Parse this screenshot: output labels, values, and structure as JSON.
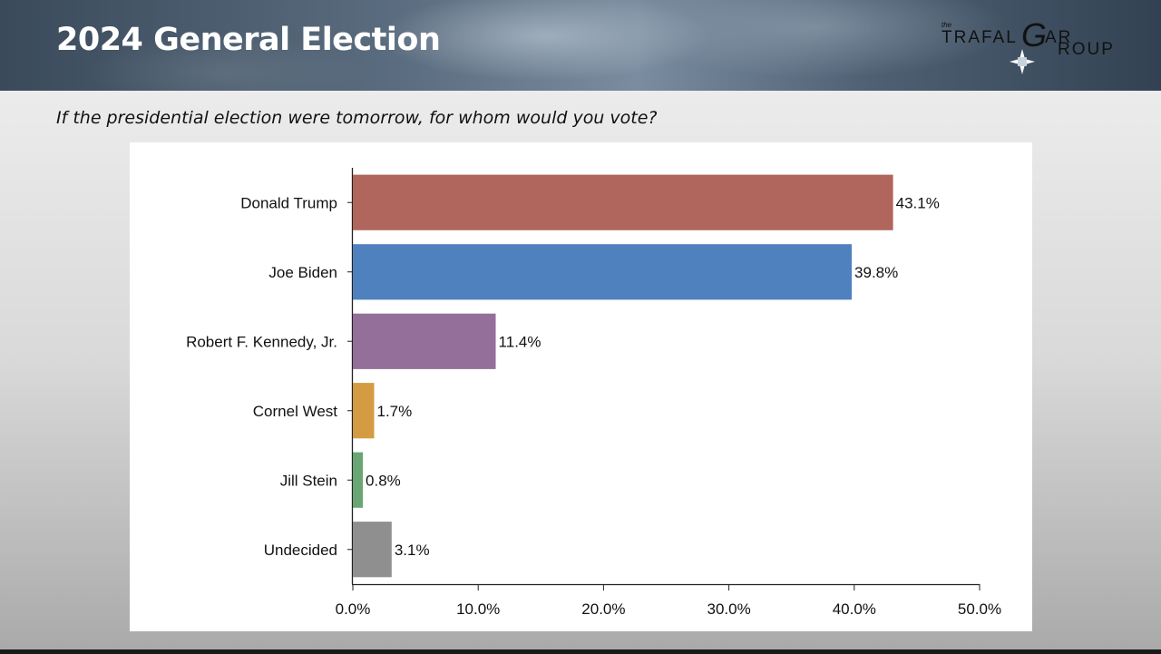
{
  "header": {
    "title": "2024 General Election",
    "logo": {
      "the": "the",
      "line1": "TRAFAL",
      "g": "G",
      "ar": "AR",
      "roup": "ROUP"
    }
  },
  "question": "If the presidential election were tomorrow, for whom would you vote?",
  "chart_data": {
    "type": "bar",
    "orientation": "horizontal",
    "categories": [
      "Donald Trump",
      "Joe Biden",
      "Robert F. Kennedy, Jr.",
      "Cornel West",
      "Jill Stein",
      "Undecided"
    ],
    "values": [
      43.1,
      39.8,
      11.4,
      1.7,
      0.8,
      3.1
    ],
    "value_labels": [
      "43.1%",
      "39.8%",
      "11.4%",
      "1.7%",
      "0.8%",
      "3.1%"
    ],
    "colors": [
      "#b0665c",
      "#4e81bd",
      "#946f9a",
      "#d39b42",
      "#6aa574",
      "#8f8f8f"
    ],
    "xlim": [
      0,
      50
    ],
    "xticks": [
      0,
      10,
      20,
      30,
      40,
      50
    ],
    "xtick_labels": [
      "0.0%",
      "10.0%",
      "20.0%",
      "30.0%",
      "40.0%",
      "50.0%"
    ],
    "title": "",
    "xlabel": "",
    "ylabel": "",
    "grid": false
  }
}
